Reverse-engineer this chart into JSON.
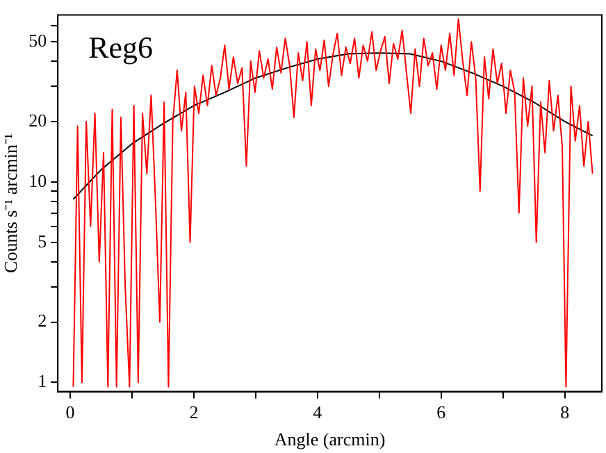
{
  "chart_data": {
    "type": "line",
    "xlabel": "Angle (arcmin)",
    "ylabel": "Counts s⁻¹ arcmin⁻¹",
    "annotations": [
      "Reg6"
    ],
    "log": "y",
    "grid": false,
    "legend": false,
    "marker": "none",
    "line_style": "solid",
    "xlim": [
      -0.2,
      8.6
    ],
    "xticks": [
      0,
      {
        "value": 1,
        "label": null
      },
      2,
      {
        "value": 3,
        "label": null
      },
      4,
      {
        "value": 5,
        "label": null
      },
      6,
      {
        "value": 7,
        "label": null
      },
      8
    ],
    "ylim": [
      0.9,
      68
    ],
    "yticks": [
      1,
      2,
      {
        "value": 3,
        "label": null
      },
      {
        "value": 4,
        "label": null
      },
      5,
      {
        "value": 6,
        "label": null
      },
      {
        "value": 7,
        "label": null
      },
      {
        "value": 8,
        "label": null
      },
      {
        "value": 9,
        "label": null
      },
      10,
      20,
      {
        "value": 30,
        "label": null
      },
      {
        "value": 40,
        "label": null
      },
      50,
      {
        "value": 60,
        "label": null
      }
    ],
    "series": [
      {
        "color": "#ff0000",
        "x": [
          0.05,
          0.12,
          0.19,
          0.26,
          0.33,
          0.4,
          0.47,
          0.54,
          0.61,
          0.68,
          0.75,
          0.82,
          0.89,
          0.96,
          1.03,
          1.1,
          1.17,
          1.24,
          1.31,
          1.38,
          1.45,
          1.52,
          1.59,
          1.66,
          1.73,
          1.8,
          1.87,
          1.94,
          2.01,
          2.08,
          2.15,
          2.22,
          2.29,
          2.36,
          2.43,
          2.5,
          2.57,
          2.64,
          2.71,
          2.78,
          2.85,
          2.92,
          2.99,
          3.06,
          3.13,
          3.2,
          3.27,
          3.34,
          3.41,
          3.48,
          3.55,
          3.62,
          3.69,
          3.76,
          3.83,
          3.9,
          3.97,
          4.04,
          4.11,
          4.18,
          4.25,
          4.32,
          4.39,
          4.46,
          4.53,
          4.6,
          4.67,
          4.74,
          4.81,
          4.88,
          4.95,
          5.02,
          5.09,
          5.16,
          5.23,
          5.3,
          5.37,
          5.44,
          5.51,
          5.58,
          5.65,
          5.72,
          5.79,
          5.86,
          5.93,
          6,
          6.07,
          6.14,
          6.21,
          6.28,
          6.35,
          6.42,
          6.49,
          6.56,
          6.63,
          6.7,
          6.77,
          6.84,
          6.91,
          6.98,
          7.05,
          7.12,
          7.19,
          7.26,
          7.33,
          7.4,
          7.47,
          7.54,
          7.61,
          7.68,
          7.75,
          7.82,
          7.89,
          7.96,
          8.02,
          8.1,
          8.17,
          8.24,
          8.31,
          8.38,
          8.45
        ],
        "values": [
          0.95,
          19,
          1,
          20,
          6,
          22,
          4,
          14,
          0.95,
          23,
          0.95,
          21,
          3,
          0.95,
          24,
          1,
          22,
          11,
          27,
          8,
          2,
          25,
          0.95,
          20,
          36,
          18,
          28,
          5,
          30,
          22,
          34,
          24,
          38,
          27,
          33,
          48,
          29,
          42,
          31,
          37,
          12,
          40,
          28,
          45,
          33,
          41,
          29,
          47,
          35,
          52,
          38,
          21,
          44,
          32,
          50,
          24,
          46,
          36,
          51,
          30,
          43,
          55,
          34,
          47,
          39,
          52,
          33,
          48,
          40,
          56,
          36,
          45,
          53,
          31,
          49,
          41,
          57,
          35,
          22,
          46,
          30,
          52,
          38,
          44,
          29,
          48,
          36,
          55,
          34,
          65,
          40,
          27,
          50,
          33,
          9,
          42,
          26,
          46,
          31,
          39,
          22,
          36,
          28,
          7,
          33,
          19,
          30,
          5,
          25,
          14,
          32,
          18,
          27,
          15,
          0.95,
          30,
          16,
          24,
          12,
          20,
          11
        ]
      },
      {
        "color": "#000000",
        "x": [
          0.05,
          0.5,
          1,
          1.5,
          2,
          2.5,
          3,
          3.5,
          4,
          4.5,
          5,
          5.5,
          6,
          6.5,
          7,
          7.5,
          8,
          8.45
        ],
        "values": [
          8.2,
          11.5,
          15.5,
          19.5,
          24,
          28,
          33,
          37,
          41,
          43.5,
          44,
          43.5,
          40,
          35,
          30,
          25,
          20,
          17
        ]
      }
    ]
  }
}
